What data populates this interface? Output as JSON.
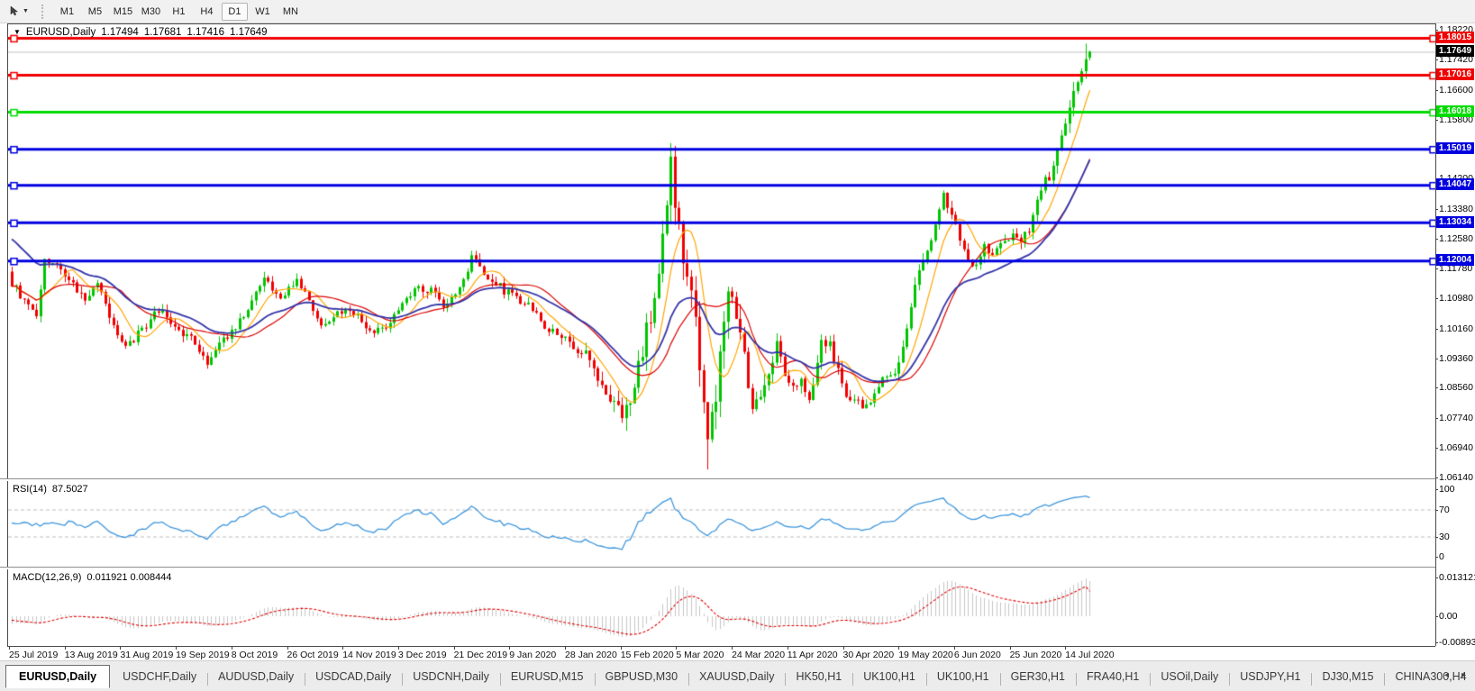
{
  "colors": {
    "bull": "#00C400",
    "bear": "#F00000",
    "line_red": "#F00000",
    "line_green": "#00DC00",
    "line_blue": "#0000E0",
    "ma_orange": "#FFA500",
    "ma_red": "#DC0000",
    "ma_blue": "#3434A8",
    "rsi_line": "#3E96DC",
    "rsi_level_dash": "#BDBDBD",
    "macd_bar": "#C6C6C6",
    "macd_signal": "#E00000",
    "current_line": "#C0C0C0",
    "current_chip_bg": "#000000"
  },
  "toolbar": {
    "tool_icon": "cursor-tool",
    "timeframes": [
      {
        "label": "M1",
        "active": false
      },
      {
        "label": "M5",
        "active": false
      },
      {
        "label": "M15",
        "active": false
      },
      {
        "label": "M30",
        "active": false
      },
      {
        "label": "H1",
        "active": false
      },
      {
        "label": "H4",
        "active": false
      },
      {
        "label": "D1",
        "active": true
      },
      {
        "label": "W1",
        "active": false
      },
      {
        "label": "MN",
        "active": false
      }
    ]
  },
  "chart": {
    "symbol": "EURUSD,Daily",
    "ohlc": {
      "open": "1.17494",
      "high": "1.17681",
      "low": "1.17416",
      "close": "1.17649"
    }
  },
  "price_axis": {
    "ticks": [
      {
        "label": "1.18220",
        "price": 1.1822
      },
      {
        "label": "1.17420",
        "price": 1.1742
      },
      {
        "label": "1.16600",
        "price": 1.166
      },
      {
        "label": "1.15800",
        "price": 1.158
      },
      {
        "label": "1.15000",
        "price": 1.15
      },
      {
        "label": "1.14200",
        "price": 1.142
      },
      {
        "label": "1.13380",
        "price": 1.1338
      },
      {
        "label": "1.12580",
        "price": 1.1258
      },
      {
        "label": "1.11780",
        "price": 1.1178
      },
      {
        "label": "1.10980",
        "price": 1.1098
      },
      {
        "label": "1.10160",
        "price": 1.1016
      },
      {
        "label": "1.09360",
        "price": 1.0936
      },
      {
        "label": "1.08560",
        "price": 1.0856
      },
      {
        "label": "1.07740",
        "price": 1.0774
      },
      {
        "label": "1.06940",
        "price": 1.0694
      },
      {
        "label": "1.06140",
        "price": 1.0614
      }
    ],
    "levels": [
      {
        "label": "1.18015",
        "price": 1.18015,
        "color": "#F00000"
      },
      {
        "label": "1.17016",
        "price": 1.17016,
        "color": "#F00000"
      },
      {
        "label": "1.16018",
        "price": 1.16018,
        "color": "#00DC00"
      },
      {
        "label": "1.15019",
        "price": 1.15019,
        "color": "#0000E0"
      },
      {
        "label": "1.14047",
        "price": 1.14047,
        "color": "#0000E0"
      },
      {
        "label": "1.13034",
        "price": 1.13034,
        "color": "#0000E0"
      },
      {
        "label": "1.12004",
        "price": 1.12004,
        "color": "#0000E0"
      }
    ],
    "current": {
      "label": "1.17649",
      "price": 1.17649
    }
  },
  "rsi": {
    "label": "RSI(14)",
    "value": "87.5027",
    "axis": [
      {
        "label": "100",
        "v": 100
      },
      {
        "label": "70",
        "v": 70
      },
      {
        "label": "30",
        "v": 30
      },
      {
        "label": "0",
        "v": 0
      }
    ]
  },
  "macd": {
    "label": "MACD(12,26,9)",
    "values": "0.011921 0.008444",
    "axis": [
      {
        "label": "0.013121",
        "v": 0.013121
      },
      {
        "label": "0.00",
        "v": 0
      },
      {
        "label": "-0.008937",
        "v": -0.008937
      }
    ]
  },
  "date_axis": {
    "labels": [
      "25 Jul 2019",
      "13 Aug 2019",
      "31 Aug 2019",
      "19 Sep 2019",
      "8 Oct 2019",
      "26 Oct 2019",
      "14 Nov 2019",
      "3 Dec 2019",
      "21 Dec 2019",
      "9 Jan 2020",
      "28 Jan 2020",
      "15 Feb 2020",
      "5 Mar 2020",
      "24 Mar 2020",
      "11 Apr 2020",
      "30 Apr 2020",
      "19 May 2020",
      "6 Jun 2020",
      "25 Jun 2020",
      "14 Jul 2020"
    ]
  },
  "tabs": {
    "items": [
      {
        "label": "EURUSD,Daily",
        "active": true
      },
      {
        "label": "USDCHF,Daily",
        "active": false
      },
      {
        "label": "AUDUSD,Daily",
        "active": false
      },
      {
        "label": "USDCAD,Daily",
        "active": false
      },
      {
        "label": "USDCNH,Daily",
        "active": false
      },
      {
        "label": "EURUSD,M15",
        "active": false
      },
      {
        "label": "GBPUSD,M30",
        "active": false
      },
      {
        "label": "XAUUSD,Daily",
        "active": false
      },
      {
        "label": "HK50,H1",
        "active": false
      },
      {
        "label": "UK100,H1",
        "active": false
      },
      {
        "label": "UK100,H1",
        "active": false
      },
      {
        "label": "GER30,H1",
        "active": false
      },
      {
        "label": "FRA40,H1",
        "active": false
      },
      {
        "label": "USOil,Daily",
        "active": false
      },
      {
        "label": "USDJPY,H1",
        "active": false
      },
      {
        "label": "DJ30,M15",
        "active": false
      },
      {
        "label": "CHINA300,H4",
        "active": false
      }
    ],
    "scroll_left": "◂",
    "scroll_right": "▸"
  },
  "chart_data": {
    "type": "candlestick",
    "symbol": "EURUSD",
    "timeframe": "Daily",
    "title": "EURUSD,Daily",
    "n_candles": 266,
    "first_visible_date": "25 Jul 2019",
    "last_axis_date": "14 Jul 2020",
    "last_candle": {
      "open": 1.17494,
      "high": 1.17681,
      "low": 1.17416,
      "close": 1.17649
    },
    "horizontal_levels": [
      1.18015,
      1.17016,
      1.16018,
      1.15019,
      1.14047,
      1.13034,
      1.12004
    ],
    "y_axis_range": [
      1.0614,
      1.1822
    ],
    "close_anchors": [
      [
        0,
        1.114
      ],
      [
        4,
        1.1075
      ],
      [
        6,
        1.106
      ],
      [
        8,
        1.1195
      ],
      [
        13,
        1.117
      ],
      [
        18,
        1.1095
      ],
      [
        21,
        1.114
      ],
      [
        26,
        1.0995
      ],
      [
        28,
        1.0965
      ],
      [
        33,
        1.103
      ],
      [
        36,
        1.107
      ],
      [
        41,
        1.1015
      ],
      [
        44,
        1.099
      ],
      [
        48,
        1.093
      ],
      [
        52,
        1.0985
      ],
      [
        56,
        1.104
      ],
      [
        62,
        1.115
      ],
      [
        66,
        1.11
      ],
      [
        70,
        1.1152
      ],
      [
        76,
        1.102
      ],
      [
        80,
        1.107
      ],
      [
        85,
        1.106
      ],
      [
        88,
        1.1005
      ],
      [
        91,
        1.1018
      ],
      [
        95,
        1.1065
      ],
      [
        100,
        1.113
      ],
      [
        103,
        1.112
      ],
      [
        106,
        1.1078
      ],
      [
        110,
        1.112
      ],
      [
        113,
        1.121
      ],
      [
        117,
        1.116
      ],
      [
        121,
        1.1122
      ],
      [
        126,
        1.109
      ],
      [
        131,
        1.1023
      ],
      [
        136,
        1.099
      ],
      [
        141,
        1.0945
      ],
      [
        146,
        1.084
      ],
      [
        150,
        1.079
      ],
      [
        153,
        1.085
      ],
      [
        156,
        1.1026
      ],
      [
        159,
        1.1135
      ],
      [
        162,
        1.145
      ],
      [
        164,
        1.128
      ],
      [
        166,
        1.118
      ],
      [
        168,
        1.106
      ],
      [
        171,
        1.07
      ],
      [
        173,
        1.081
      ],
      [
        176,
        1.114
      ],
      [
        179,
        1.103
      ],
      [
        182,
        1.079
      ],
      [
        185,
        1.086
      ],
      [
        188,
        1.098
      ],
      [
        191,
        1.087
      ],
      [
        194,
        1.0875
      ],
      [
        196,
        1.082
      ],
      [
        199,
        1.098
      ],
      [
        201,
        1.0975
      ],
      [
        205,
        1.083
      ],
      [
        210,
        1.081
      ],
      [
        214,
        1.089
      ],
      [
        217,
        1.09
      ],
      [
        220,
        1.101
      ],
      [
        222,
        1.1135
      ],
      [
        226,
        1.125
      ],
      [
        229,
        1.137
      ],
      [
        232,
        1.13
      ],
      [
        236,
        1.1175
      ],
      [
        239,
        1.125
      ],
      [
        241,
        1.122
      ],
      [
        243,
        1.1235
      ],
      [
        246,
        1.127
      ],
      [
        248,
        1.125
      ],
      [
        250,
        1.1285
      ],
      [
        253,
        1.14
      ],
      [
        256,
        1.145
      ],
      [
        258,
        1.1525
      ],
      [
        261,
        1.1655
      ],
      [
        263,
        1.171
      ],
      [
        265,
        1.17649
      ]
    ],
    "volatility_anchors": [
      [
        0,
        0.0035
      ],
      [
        100,
        0.0032
      ],
      [
        140,
        0.004
      ],
      [
        150,
        0.007
      ],
      [
        158,
        0.009
      ],
      [
        163,
        0.011
      ],
      [
        171,
        0.012
      ],
      [
        176,
        0.0095
      ],
      [
        182,
        0.007
      ],
      [
        190,
        0.005
      ],
      [
        200,
        0.004
      ],
      [
        215,
        0.0035
      ],
      [
        222,
        0.0045
      ],
      [
        235,
        0.004
      ],
      [
        250,
        0.004
      ],
      [
        258,
        0.005
      ],
      [
        265,
        0.0055
      ]
    ],
    "spike_high": {
      "index": 162,
      "price": 1.1492
    },
    "crash_low": {
      "index": 171,
      "price": 1.0638
    },
    "moving_averages": [
      {
        "name": "fast",
        "method": "sma",
        "period": 8,
        "color": "#FFA500"
      },
      {
        "name": "medium",
        "method": "sma",
        "period": 20,
        "color": "#DC0000"
      },
      {
        "name": "slow",
        "method": "ema",
        "period": 26,
        "color": "#3434A8"
      }
    ],
    "rsi": {
      "period": 14,
      "current": 87.5027,
      "levels": [
        70,
        30
      ]
    },
    "macd": {
      "fast": 12,
      "slow": 26,
      "signal": 9,
      "current_main": 0.011921,
      "current_signal": 0.008444
    }
  }
}
